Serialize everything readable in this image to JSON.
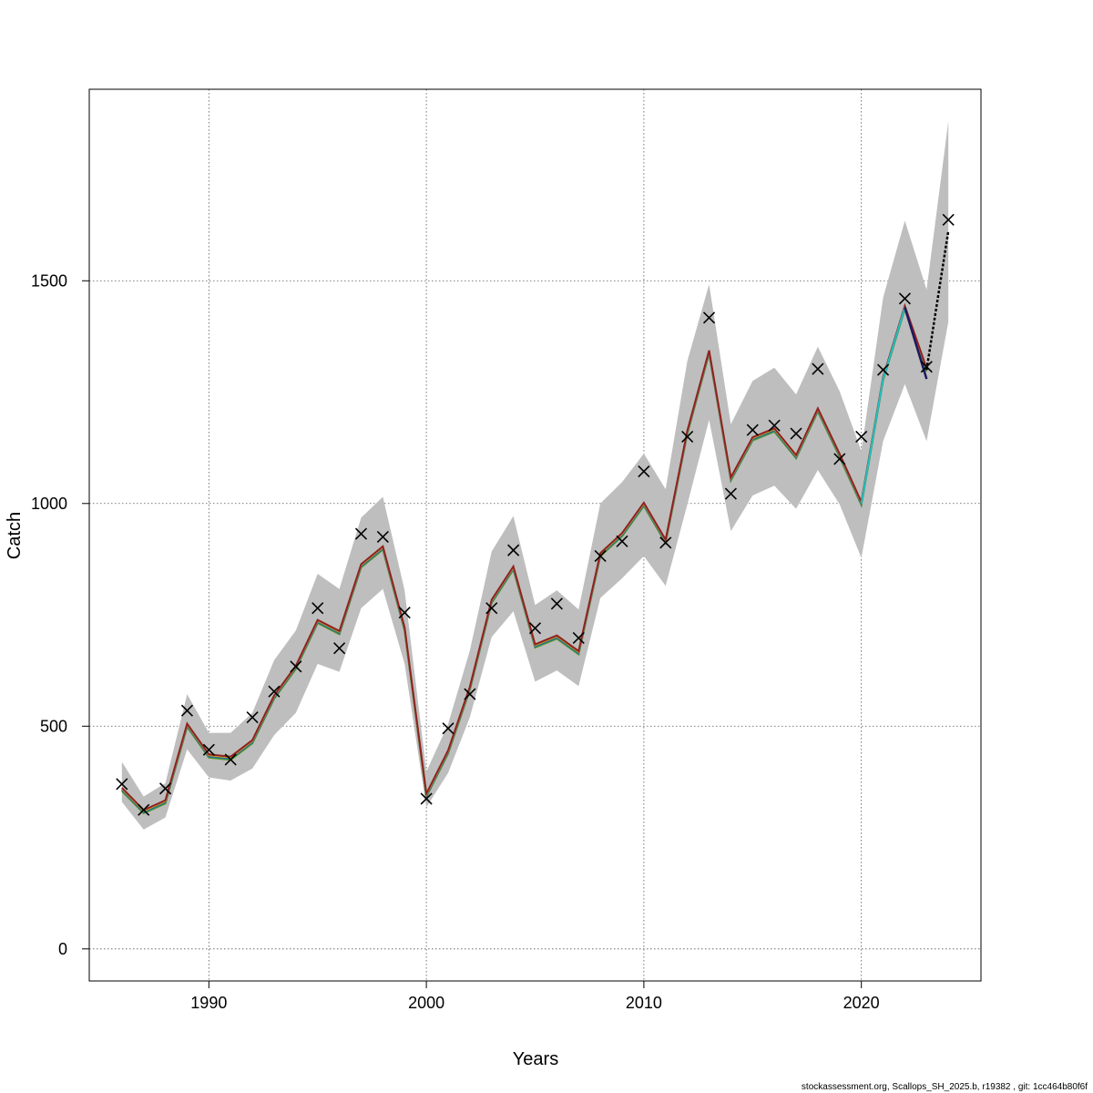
{
  "chart_data": {
    "type": "line",
    "title": "",
    "xlabel": "Years",
    "ylabel": "Catch",
    "xlim": [
      1984.5,
      2025.5
    ],
    "ylim": [
      -72,
      1930
    ],
    "xticks": [
      1990,
      2000,
      2010,
      2020
    ],
    "yticks": [
      0,
      500,
      1000,
      1500
    ],
    "grid": true,
    "legend": "none",
    "colors": {
      "band": "#bebebe",
      "fit": [
        "#6a9a2a",
        "#1a8a6a",
        "#3a5aa0",
        "#c8b020",
        "#902020"
      ],
      "observed": "#000000",
      "retro_recent": [
        "#3a3a9a",
        "#20c0c0",
        "#1a1a60"
      ],
      "forecast": "#000000",
      "grid": "#555555"
    },
    "years": [
      1986,
      1987,
      1988,
      1989,
      1990,
      1991,
      1992,
      1993,
      1994,
      1995,
      1996,
      1997,
      1998,
      1999,
      2000,
      2001,
      2002,
      2003,
      2004,
      2005,
      2006,
      2007,
      2008,
      2009,
      2010,
      2011,
      2012,
      2013,
      2014,
      2015,
      2016,
      2017,
      2018,
      2019,
      2020,
      2021,
      2022,
      2023,
      2024
    ],
    "observed": [
      370,
      312,
      360,
      535,
      447,
      425,
      520,
      578,
      634,
      765,
      675,
      932,
      925,
      755,
      337,
      495,
      572,
      765,
      895,
      720,
      775,
      698,
      882,
      915,
      1072,
      912,
      1150,
      1417,
      1022,
      1165,
      1175,
      1157,
      1302,
      1100,
      1150,
      1300,
      1460,
      1307,
      1637
    ],
    "fit": [
      358,
      308,
      330,
      502,
      433,
      428,
      465,
      565,
      632,
      735,
      710,
      860,
      900,
      718,
      345,
      442,
      585,
      780,
      855,
      680,
      700,
      665,
      885,
      930,
      998,
      915,
      1160,
      1340,
      1055,
      1145,
      1165,
      1105,
      1210,
      1108,
      1000,
      1280,
      1440,
      1300,
      1612
    ],
    "lower": [
      330,
      268,
      295,
      448,
      385,
      378,
      405,
      480,
      530,
      640,
      622,
      765,
      808,
      640,
      318,
      395,
      520,
      700,
      758,
      600,
      625,
      590,
      788,
      832,
      882,
      815,
      998,
      1188,
      938,
      1018,
      1040,
      988,
      1075,
      998,
      878,
      1140,
      1268,
      1140,
      1408
    ],
    "upper": [
      420,
      342,
      372,
      572,
      485,
      485,
      530,
      648,
      715,
      842,
      808,
      968,
      1015,
      805,
      398,
      505,
      670,
      892,
      972,
      772,
      805,
      762,
      1000,
      1048,
      1112,
      1032,
      1320,
      1492,
      1178,
      1275,
      1305,
      1245,
      1352,
      1252,
      1118,
      1462,
      1635,
      1480,
      1858
    ]
  },
  "footer": "stockassessment.org, Scallops_SH_2025.b, r19382 , git: 1cc464b80f6f"
}
